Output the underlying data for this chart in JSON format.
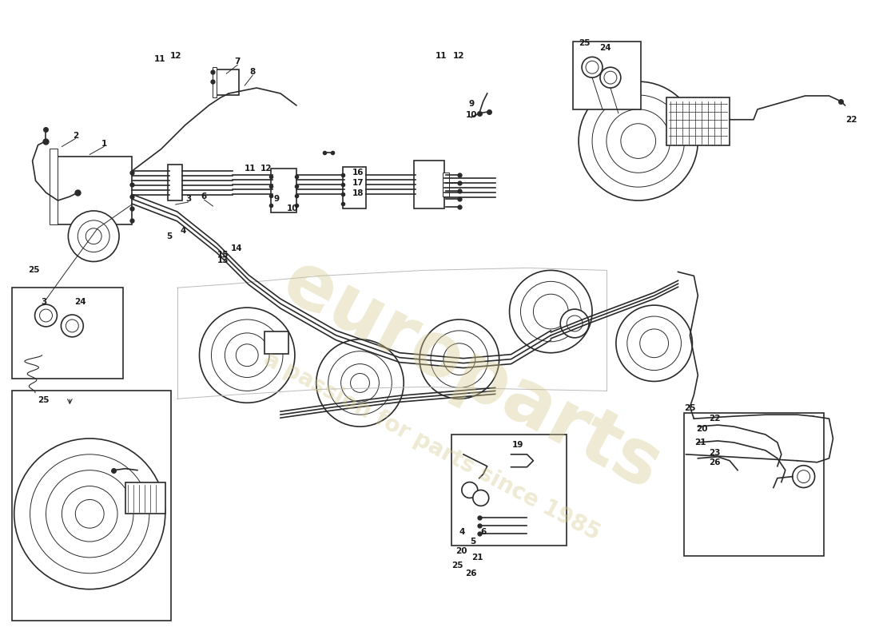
{
  "background_color": "#ffffff",
  "line_color": "#2a2a2a",
  "label_color": "#1a1a1a",
  "watermark_color": "#d4c88a",
  "fig_width": 11.0,
  "fig_height": 8.0,
  "dpi": 100
}
